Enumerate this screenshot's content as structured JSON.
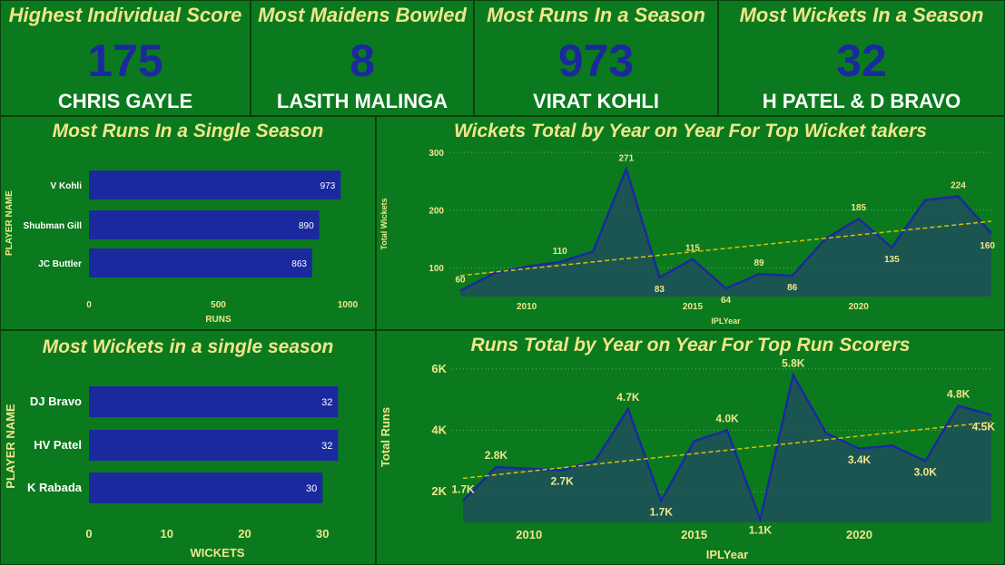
{
  "kpis": [
    {
      "title": "Highest Individual Score",
      "value": "175",
      "name": "CHRIS GAYLE"
    },
    {
      "title": "Most Maidens Bowled",
      "value": "8",
      "name": "LASITH MALINGA"
    },
    {
      "title": "Most Runs In a Season",
      "value": "973",
      "name": "VIRAT KOHLI"
    },
    {
      "title": "Most Wickets In a Season",
      "value": "32",
      "name": "H PATEL & D BRAVO"
    }
  ],
  "colors": {
    "background": "#0b7a1e",
    "bar": "#1a2a9e",
    "title": "#f0e68c",
    "area": "#1f4f5a",
    "line": "#1a2a9e",
    "trend": "#d4c200"
  },
  "chart_data": [
    {
      "type": "bar",
      "orientation": "horizontal",
      "title": "Most Runs In a Single Season",
      "xlabel": "RUNS",
      "ylabel": "PLAYER NAME",
      "categories": [
        "V Kohli",
        "Shubman Gill",
        "JC Buttler"
      ],
      "values": [
        973,
        890,
        863
      ],
      "xlim": [
        0,
        1000
      ],
      "xticks": [
        "0",
        "500",
        "1000"
      ],
      "data_labels": [
        "973",
        "890",
        "863"
      ]
    },
    {
      "type": "area",
      "title": "Wickets Total by Year on Year For Top Wicket takers",
      "xlabel": "IPLYear",
      "ylabel": "Total Wickets",
      "x": [
        2008,
        2009,
        2010,
        2011,
        2012,
        2013,
        2014,
        2015,
        2016,
        2017,
        2018,
        2019,
        2020,
        2021,
        2022,
        2023,
        2024
      ],
      "values": [
        60,
        90,
        102,
        110,
        128,
        271,
        83,
        115,
        64,
        89,
        86,
        150,
        185,
        135,
        217,
        224,
        160
      ],
      "labeled_points": [
        {
          "x": 2008,
          "label": "60"
        },
        {
          "x": 2011,
          "label": "110"
        },
        {
          "x": 2013,
          "label": "271"
        },
        {
          "x": 2014,
          "label": "83"
        },
        {
          "x": 2015,
          "label": "115"
        },
        {
          "x": 2016,
          "label": "64"
        },
        {
          "x": 2017,
          "label": "89"
        },
        {
          "x": 2018,
          "label": "86"
        },
        {
          "x": 2020,
          "label": "185"
        },
        {
          "x": 2021,
          "label": "135"
        },
        {
          "x": 2023,
          "label": "224"
        },
        {
          "x": 2024,
          "label": "160"
        }
      ],
      "ylim": [
        50,
        300
      ],
      "yticks": [
        "100",
        "200",
        "300"
      ],
      "xticks": [
        "2010",
        "2015",
        "2020"
      ],
      "trendline": true,
      "grid": true
    },
    {
      "type": "bar",
      "orientation": "horizontal",
      "title": "Most Wickets in a single season",
      "xlabel": "WICKETS",
      "ylabel": "PLAYER NAME",
      "categories": [
        "DJ Bravo",
        "HV Patel",
        "K Rabada"
      ],
      "values": [
        32,
        32,
        30
      ],
      "xlim": [
        0,
        33
      ],
      "xticks": [
        "0",
        "10",
        "20",
        "30"
      ],
      "data_labels": [
        "32",
        "32",
        "30"
      ]
    },
    {
      "type": "area",
      "title": "Runs Total by Year on Year For Top Run Scorers",
      "xlabel": "IPLYear",
      "ylabel": "Total Runs",
      "x": [
        2008,
        2009,
        2010,
        2011,
        2012,
        2013,
        2014,
        2015,
        2016,
        2017,
        2018,
        2019,
        2020,
        2021,
        2022,
        2023,
        2024
      ],
      "values": [
        1700,
        2800,
        2750,
        2700,
        3000,
        4700,
        1700,
        3650,
        4000,
        1100,
        5800,
        3900,
        3400,
        3500,
        3000,
        4800,
        4500
      ],
      "labeled_points": [
        {
          "x": 2008,
          "label": "1.7K"
        },
        {
          "x": 2009,
          "label": "2.8K"
        },
        {
          "x": 2011,
          "label": "2.7K"
        },
        {
          "x": 2013,
          "label": "4.7K"
        },
        {
          "x": 2014,
          "label": "1.7K"
        },
        {
          "x": 2016,
          "label": "4.0K"
        },
        {
          "x": 2017,
          "label": "1.1K"
        },
        {
          "x": 2018,
          "label": "5.8K"
        },
        {
          "x": 2020,
          "label": "3.4K"
        },
        {
          "x": 2022,
          "label": "3.0K"
        },
        {
          "x": 2023,
          "label": "4.8K"
        },
        {
          "x": 2024,
          "label": "4.5K"
        }
      ],
      "ylim": [
        1000,
        6200
      ],
      "yticks": [
        "2K",
        "4K",
        "6K"
      ],
      "ytick_values": [
        2000,
        4000,
        6000
      ],
      "xticks": [
        "2010",
        "2015",
        "2020"
      ],
      "trendline": true,
      "grid": true
    }
  ]
}
